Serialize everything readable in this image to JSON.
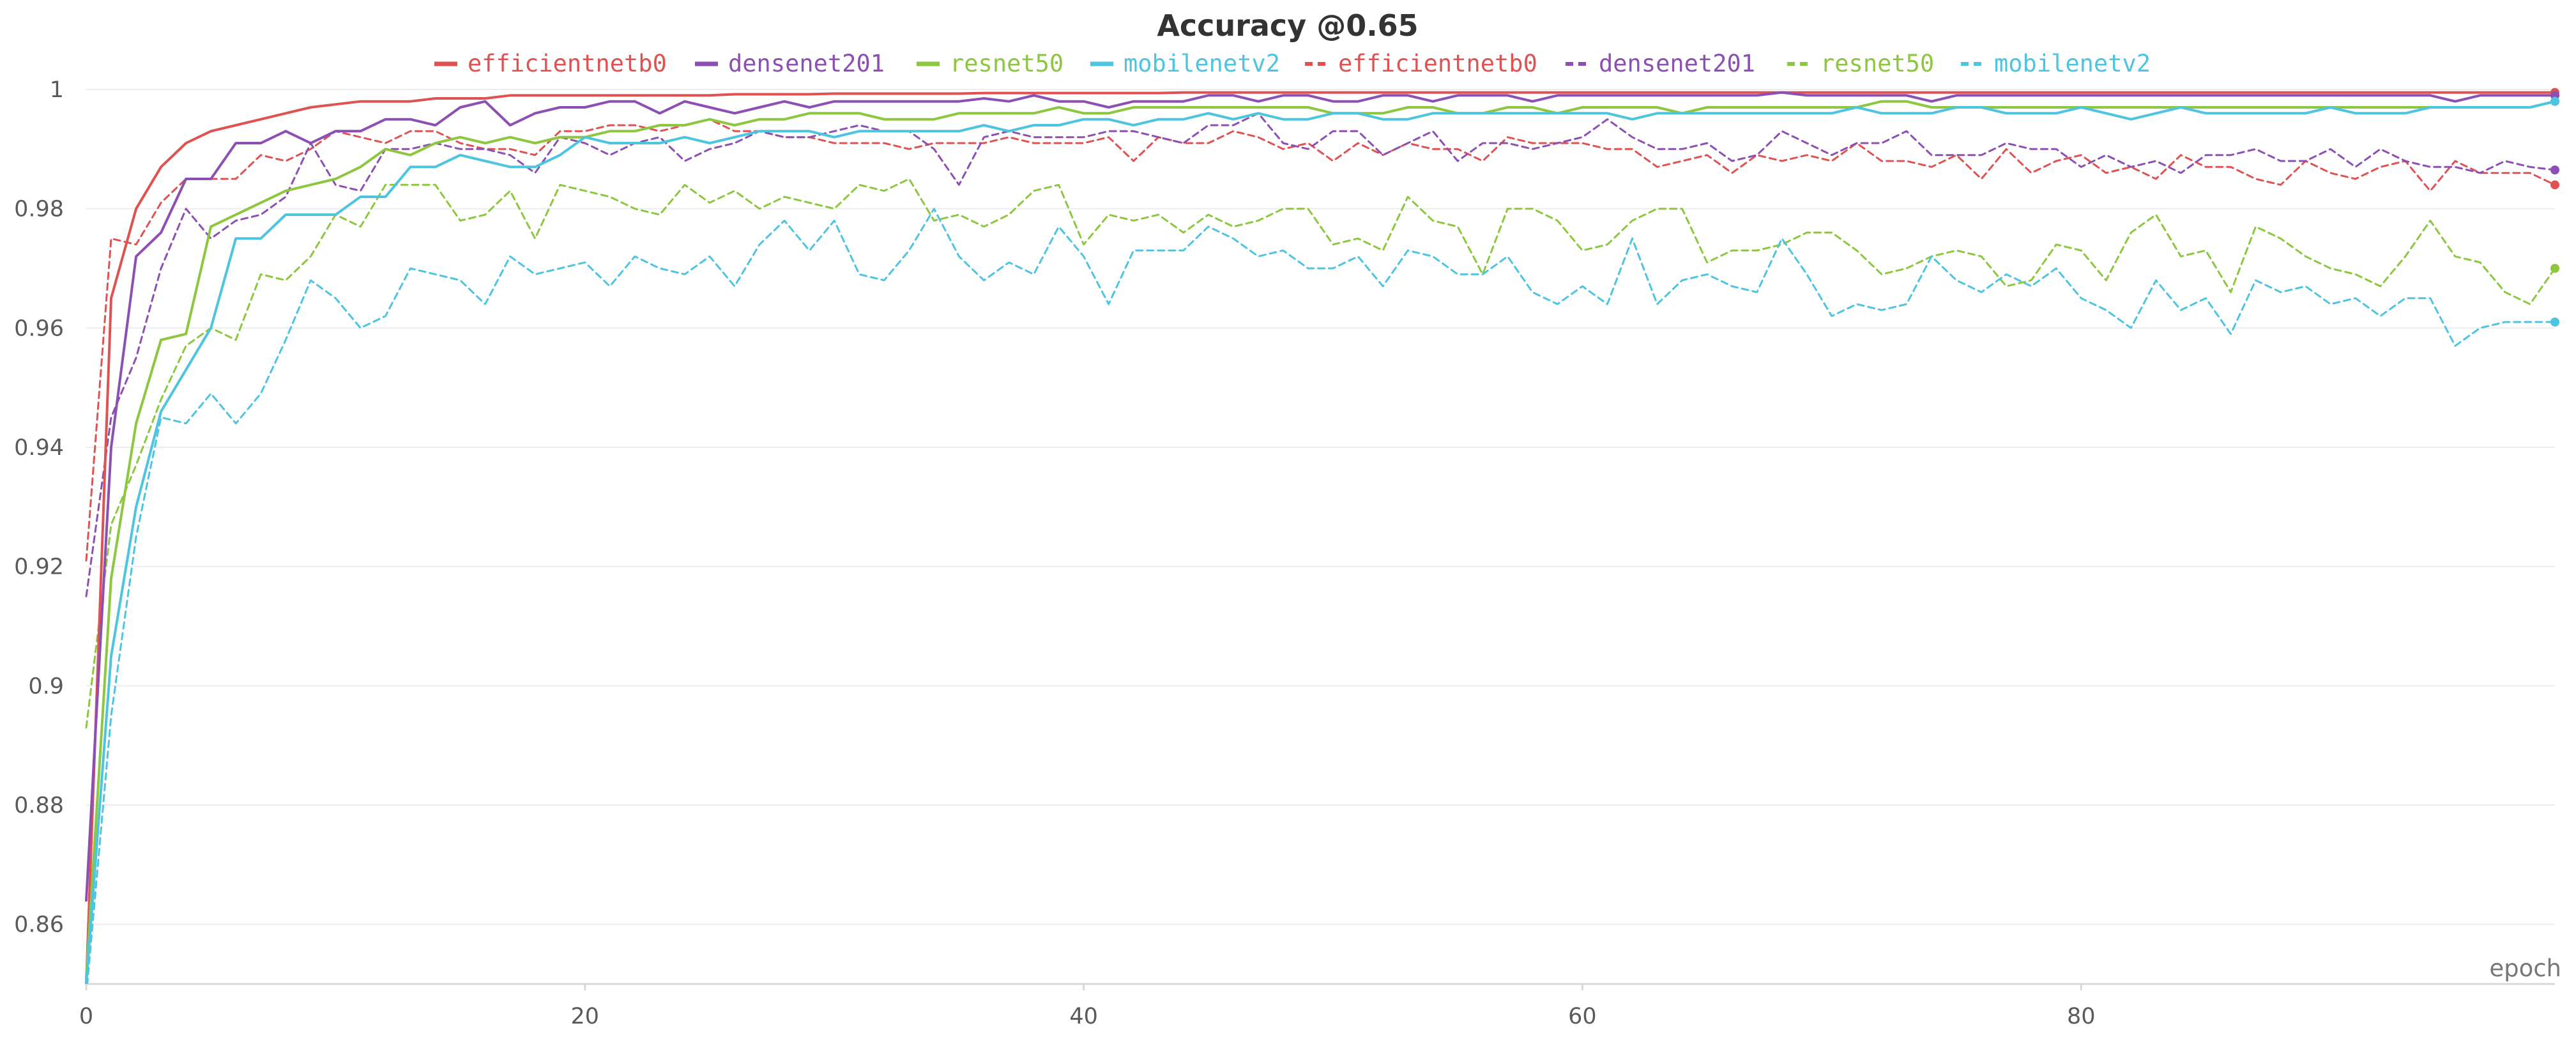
{
  "chart_data": {
    "type": "line",
    "title": "Accuracy @0.65",
    "xlabel": "epoch",
    "ylabel": "",
    "xlim": [
      0,
      99
    ],
    "ylim": [
      0.85,
      1.0
    ],
    "x_ticks": [
      0,
      20,
      40,
      60,
      80
    ],
    "y_ticks": [
      0.86,
      0.88,
      0.9,
      0.92,
      0.94,
      0.96,
      0.98,
      1
    ],
    "grid": true,
    "legend_position": "top-center",
    "series": [
      {
        "name": "efficientnetb0",
        "color": "#e05252",
        "dash": "solid",
        "values": [
          0.85,
          0.965,
          0.98,
          0.987,
          0.991,
          0.993,
          0.994,
          0.995,
          0.996,
          0.997,
          0.9975,
          0.998,
          0.998,
          0.998,
          0.9985,
          0.9985,
          0.9985,
          0.999,
          0.999,
          0.999,
          0.999,
          0.999,
          0.999,
          0.999,
          0.999,
          0.999,
          0.9992,
          0.9992,
          0.9992,
          0.9992,
          0.9993,
          0.9993,
          0.9993,
          0.9993,
          0.9993,
          0.9993,
          0.9994,
          0.9994,
          0.9994,
          0.9994,
          0.9994,
          0.9994,
          0.9994,
          0.9994,
          0.9995,
          0.9995,
          0.9995,
          0.9995,
          0.9995,
          0.9995,
          0.9995,
          0.9995,
          0.9995,
          0.9995,
          0.9995,
          0.9995,
          0.9995,
          0.9995,
          0.9995,
          0.9995,
          0.9995,
          0.9995,
          0.9995,
          0.9995,
          0.9995,
          0.9995,
          0.9995,
          0.9995,
          0.9995,
          0.9995,
          0.9995,
          0.9995,
          0.9995,
          0.9995,
          0.9995,
          0.9995,
          0.9995,
          0.9995,
          0.9995,
          0.9995,
          0.9995,
          0.9995,
          0.9995,
          0.9995,
          0.9995,
          0.9995,
          0.9995,
          0.9995,
          0.9995,
          0.9995,
          0.9995,
          0.9995,
          0.9995,
          0.9995,
          0.9995,
          0.9995,
          0.9995,
          0.9995,
          0.9995,
          0.9995
        ]
      },
      {
        "name": "densenet201",
        "color": "#8c4fb3",
        "dash": "solid",
        "values": [
          0.864,
          0.94,
          0.972,
          0.976,
          0.985,
          0.985,
          0.991,
          0.991,
          0.993,
          0.991,
          0.993,
          0.993,
          0.995,
          0.995,
          0.994,
          0.997,
          0.998,
          0.994,
          0.996,
          0.997,
          0.997,
          0.998,
          0.998,
          0.996,
          0.998,
          0.997,
          0.996,
          0.997,
          0.998,
          0.997,
          0.998,
          0.998,
          0.998,
          0.998,
          0.998,
          0.998,
          0.9985,
          0.998,
          0.999,
          0.998,
          0.998,
          0.997,
          0.998,
          0.998,
          0.998,
          0.999,
          0.999,
          0.998,
          0.999,
          0.999,
          0.998,
          0.998,
          0.999,
          0.999,
          0.998,
          0.999,
          0.999,
          0.999,
          0.998,
          0.999,
          0.999,
          0.999,
          0.999,
          0.999,
          0.999,
          0.999,
          0.999,
          0.999,
          0.9995,
          0.999,
          0.999,
          0.999,
          0.999,
          0.999,
          0.998,
          0.999,
          0.999,
          0.999,
          0.999,
          0.999,
          0.999,
          0.999,
          0.999,
          0.999,
          0.999,
          0.999,
          0.999,
          0.999,
          0.999,
          0.999,
          0.999,
          0.999,
          0.999,
          0.999,
          0.999,
          0.998,
          0.999,
          0.999,
          0.999,
          0.999
        ]
      },
      {
        "name": "resnet50",
        "color": "#8dc63f",
        "dash": "solid",
        "values": [
          0.851,
          0.918,
          0.944,
          0.958,
          0.959,
          0.977,
          0.979,
          0.981,
          0.983,
          0.984,
          0.985,
          0.987,
          0.99,
          0.989,
          0.991,
          0.992,
          0.991,
          0.992,
          0.991,
          0.992,
          0.992,
          0.993,
          0.993,
          0.994,
          0.994,
          0.995,
          0.994,
          0.995,
          0.995,
          0.996,
          0.996,
          0.996,
          0.995,
          0.995,
          0.995,
          0.996,
          0.996,
          0.996,
          0.996,
          0.997,
          0.996,
          0.996,
          0.997,
          0.997,
          0.997,
          0.997,
          0.997,
          0.997,
          0.997,
          0.997,
          0.996,
          0.996,
          0.996,
          0.997,
          0.997,
          0.996,
          0.996,
          0.997,
          0.997,
          0.996,
          0.997,
          0.997,
          0.997,
          0.997,
          0.996,
          0.997,
          0.997,
          0.997,
          0.997,
          0.997,
          0.997,
          0.997,
          0.998,
          0.998,
          0.997,
          0.997,
          0.997,
          0.997,
          0.997,
          0.997,
          0.997,
          0.997,
          0.997,
          0.997,
          0.997,
          0.997,
          0.997,
          0.997,
          0.997,
          0.997,
          0.997,
          0.997,
          0.997,
          0.997,
          0.997,
          0.997,
          0.997,
          0.997,
          0.997,
          0.998
        ]
      },
      {
        "name": "mobilenetv2",
        "color": "#4dc4e0",
        "dash": "solid",
        "values": [
          0.85,
          0.905,
          0.93,
          0.946,
          0.953,
          0.96,
          0.975,
          0.975,
          0.979,
          0.979,
          0.979,
          0.982,
          0.982,
          0.987,
          0.987,
          0.989,
          0.988,
          0.987,
          0.987,
          0.989,
          0.992,
          0.991,
          0.991,
          0.991,
          0.992,
          0.991,
          0.992,
          0.993,
          0.993,
          0.993,
          0.992,
          0.993,
          0.993,
          0.993,
          0.993,
          0.993,
          0.994,
          0.993,
          0.994,
          0.994,
          0.995,
          0.995,
          0.994,
          0.995,
          0.995,
          0.996,
          0.995,
          0.996,
          0.995,
          0.995,
          0.996,
          0.996,
          0.995,
          0.995,
          0.996,
          0.996,
          0.996,
          0.996,
          0.996,
          0.996,
          0.996,
          0.996,
          0.995,
          0.996,
          0.996,
          0.996,
          0.996,
          0.996,
          0.996,
          0.996,
          0.996,
          0.997,
          0.996,
          0.996,
          0.996,
          0.997,
          0.997,
          0.996,
          0.996,
          0.996,
          0.997,
          0.996,
          0.995,
          0.996,
          0.997,
          0.996,
          0.996,
          0.996,
          0.996,
          0.996,
          0.997,
          0.996,
          0.996,
          0.996,
          0.997,
          0.997,
          0.997,
          0.997,
          0.997,
          0.998
        ]
      },
      {
        "name": "efficientnetb0",
        "color": "#e05252",
        "dash": "dashed",
        "values": [
          0.921,
          0.975,
          0.974,
          0.981,
          0.985,
          0.985,
          0.985,
          0.989,
          0.988,
          0.99,
          0.993,
          0.992,
          0.991,
          0.993,
          0.993,
          0.991,
          0.99,
          0.99,
          0.989,
          0.993,
          0.993,
          0.994,
          0.994,
          0.993,
          0.994,
          0.995,
          0.993,
          0.993,
          0.992,
          0.992,
          0.991,
          0.991,
          0.991,
          0.99,
          0.991,
          0.991,
          0.991,
          0.992,
          0.991,
          0.991,
          0.991,
          0.992,
          0.988,
          0.992,
          0.991,
          0.991,
          0.993,
          0.992,
          0.99,
          0.991,
          0.988,
          0.991,
          0.989,
          0.991,
          0.99,
          0.99,
          0.988,
          0.992,
          0.991,
          0.991,
          0.991,
          0.99,
          0.99,
          0.987,
          0.988,
          0.989,
          0.986,
          0.989,
          0.988,
          0.989,
          0.988,
          0.991,
          0.988,
          0.988,
          0.987,
          0.989,
          0.985,
          0.99,
          0.986,
          0.988,
          0.989,
          0.986,
          0.987,
          0.985,
          0.989,
          0.987,
          0.987,
          0.985,
          0.984,
          0.988,
          0.986,
          0.985,
          0.987,
          0.988,
          0.983,
          0.988,
          0.986,
          0.986,
          0.986,
          0.984
        ]
      },
      {
        "name": "densenet201",
        "color": "#8c4fb3",
        "dash": "dashed",
        "values": [
          0.915,
          0.945,
          0.955,
          0.97,
          0.98,
          0.975,
          0.978,
          0.979,
          0.982,
          0.991,
          0.984,
          0.983,
          0.99,
          0.99,
          0.991,
          0.99,
          0.99,
          0.989,
          0.986,
          0.992,
          0.991,
          0.989,
          0.991,
          0.992,
          0.988,
          0.99,
          0.991,
          0.993,
          0.992,
          0.992,
          0.993,
          0.994,
          0.993,
          0.993,
          0.99,
          0.984,
          0.992,
          0.993,
          0.992,
          0.992,
          0.992,
          0.993,
          0.993,
          0.992,
          0.991,
          0.994,
          0.994,
          0.996,
          0.991,
          0.99,
          0.993,
          0.993,
          0.989,
          0.991,
          0.993,
          0.988,
          0.991,
          0.991,
          0.99,
          0.991,
          0.992,
          0.995,
          0.992,
          0.99,
          0.99,
          0.991,
          0.988,
          0.989,
          0.993,
          0.991,
          0.989,
          0.991,
          0.991,
          0.993,
          0.989,
          0.989,
          0.989,
          0.991,
          0.99,
          0.99,
          0.987,
          0.989,
          0.987,
          0.988,
          0.986,
          0.989,
          0.989,
          0.99,
          0.988,
          0.988,
          0.99,
          0.987,
          0.99,
          0.988,
          0.987,
          0.987,
          0.986,
          0.988,
          0.987,
          0.9865
        ]
      },
      {
        "name": "resnet50",
        "color": "#8dc63f",
        "dash": "dashed",
        "values": [
          0.893,
          0.927,
          0.937,
          0.948,
          0.957,
          0.96,
          0.958,
          0.969,
          0.968,
          0.972,
          0.979,
          0.977,
          0.984,
          0.984,
          0.984,
          0.978,
          0.979,
          0.983,
          0.975,
          0.984,
          0.983,
          0.982,
          0.98,
          0.979,
          0.984,
          0.981,
          0.983,
          0.98,
          0.982,
          0.981,
          0.98,
          0.984,
          0.983,
          0.985,
          0.978,
          0.979,
          0.977,
          0.979,
          0.983,
          0.984,
          0.974,
          0.979,
          0.978,
          0.979,
          0.976,
          0.979,
          0.977,
          0.978,
          0.98,
          0.98,
          0.974,
          0.975,
          0.973,
          0.982,
          0.978,
          0.977,
          0.969,
          0.98,
          0.98,
          0.978,
          0.973,
          0.974,
          0.978,
          0.98,
          0.98,
          0.971,
          0.973,
          0.973,
          0.974,
          0.976,
          0.976,
          0.973,
          0.969,
          0.97,
          0.972,
          0.973,
          0.972,
          0.967,
          0.968,
          0.974,
          0.973,
          0.968,
          0.976,
          0.979,
          0.972,
          0.973,
          0.966,
          0.977,
          0.975,
          0.972,
          0.97,
          0.969,
          0.967,
          0.972,
          0.978,
          0.972,
          0.971,
          0.966,
          0.964,
          0.97
        ]
      },
      {
        "name": "mobilenetv2",
        "color": "#4dc4e0",
        "dash": "dashed",
        "values": [
          0.848,
          0.895,
          0.925,
          0.945,
          0.944,
          0.949,
          0.944,
          0.949,
          0.958,
          0.968,
          0.965,
          0.96,
          0.962,
          0.97,
          0.969,
          0.968,
          0.964,
          0.972,
          0.969,
          0.97,
          0.971,
          0.967,
          0.972,
          0.97,
          0.969,
          0.972,
          0.967,
          0.974,
          0.978,
          0.973,
          0.978,
          0.969,
          0.968,
          0.973,
          0.98,
          0.972,
          0.968,
          0.971,
          0.969,
          0.977,
          0.972,
          0.964,
          0.973,
          0.973,
          0.973,
          0.977,
          0.975,
          0.972,
          0.973,
          0.97,
          0.97,
          0.972,
          0.967,
          0.973,
          0.972,
          0.969,
          0.969,
          0.972,
          0.966,
          0.964,
          0.967,
          0.964,
          0.975,
          0.964,
          0.968,
          0.969,
          0.967,
          0.966,
          0.975,
          0.969,
          0.962,
          0.964,
          0.963,
          0.964,
          0.972,
          0.968,
          0.966,
          0.969,
          0.967,
          0.97,
          0.965,
          0.963,
          0.96,
          0.968,
          0.963,
          0.965,
          0.959,
          0.968,
          0.966,
          0.967,
          0.964,
          0.965,
          0.962,
          0.965,
          0.965,
          0.957,
          0.96,
          0.961,
          0.961,
          0.961
        ]
      }
    ]
  }
}
